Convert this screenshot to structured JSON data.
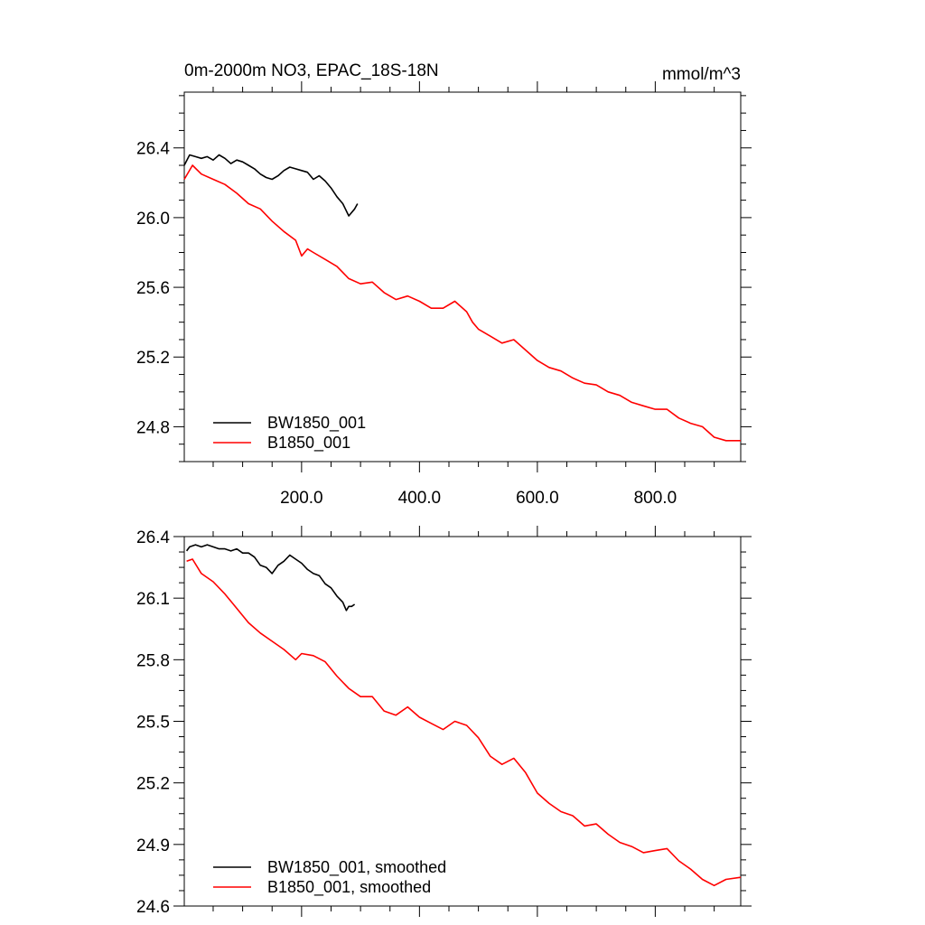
{
  "figure": {
    "title": "0m-2000m NO3, EPAC_18S-18N",
    "units": "mmol/m^3"
  },
  "colors": {
    "BW1850_001": "#000000",
    "B1850_001": "#ff0000"
  },
  "chart_data": [
    {
      "type": "line",
      "title": "0m-2000m NO3, EPAC_18S-18N",
      "units_label": "mmol/m^3",
      "xlabel": "",
      "ylabel": "",
      "xlim": [
        1,
        945
      ],
      "ylim": [
        24.6,
        26.72
      ],
      "xticks": [
        200,
        400,
        600,
        800
      ],
      "xtick_labels": [
        "200.0",
        "400.0",
        "600.0",
        "800.0"
      ],
      "yticks": [
        24.8,
        25.2,
        25.6,
        26.0,
        26.4
      ],
      "ytick_labels": [
        "24.8",
        "25.2",
        "25.6",
        "26.0",
        "26.4"
      ],
      "legend_position": "bottom-left",
      "series": [
        {
          "name": "BW1850_001",
          "color": "#000000",
          "x": [
            1,
            10,
            20,
            30,
            40,
            50,
            60,
            70,
            80,
            90,
            100,
            110,
            120,
            130,
            140,
            150,
            160,
            170,
            180,
            190,
            200,
            210,
            220,
            230,
            240,
            250,
            260,
            270,
            280,
            290,
            295
          ],
          "y": [
            26.3,
            26.36,
            26.35,
            26.34,
            26.35,
            26.33,
            26.36,
            26.34,
            26.31,
            26.33,
            26.32,
            26.3,
            26.28,
            26.25,
            26.23,
            26.22,
            26.24,
            26.27,
            26.29,
            26.28,
            26.27,
            26.26,
            26.22,
            26.24,
            26.21,
            26.17,
            26.12,
            26.08,
            26.01,
            26.05,
            26.08
          ]
        },
        {
          "name": "B1850_001",
          "color": "#ff0000",
          "x": [
            1,
            15,
            30,
            50,
            70,
            90,
            110,
            130,
            150,
            170,
            190,
            200,
            210,
            220,
            240,
            260,
            280,
            300,
            320,
            340,
            360,
            380,
            400,
            420,
            440,
            460,
            480,
            490,
            500,
            520,
            540,
            560,
            580,
            600,
            620,
            640,
            660,
            680,
            700,
            720,
            740,
            760,
            780,
            800,
            820,
            840,
            860,
            880,
            900,
            920,
            945
          ],
          "y": [
            26.22,
            26.3,
            26.25,
            26.22,
            26.19,
            26.14,
            26.08,
            26.05,
            25.98,
            25.92,
            25.87,
            25.78,
            25.82,
            25.8,
            25.76,
            25.72,
            25.65,
            25.62,
            25.63,
            25.57,
            25.53,
            25.55,
            25.52,
            25.48,
            25.48,
            25.52,
            25.46,
            25.4,
            25.36,
            25.32,
            25.28,
            25.3,
            25.24,
            25.18,
            25.14,
            25.12,
            25.08,
            25.05,
            25.04,
            25.0,
            24.98,
            24.94,
            24.92,
            24.9,
            24.9,
            24.85,
            24.82,
            24.8,
            24.74,
            24.72,
            24.72
          ]
        }
      ]
    },
    {
      "type": "line",
      "title": "",
      "xlabel": "",
      "ylabel": "",
      "xlim": [
        1,
        945
      ],
      "ylim": [
        24.6,
        26.4
      ],
      "xticks": [
        200,
        400,
        600,
        800
      ],
      "yticks": [
        24.6,
        24.9,
        25.2,
        25.5,
        25.8,
        26.1,
        26.4
      ],
      "ytick_labels": [
        "24.6",
        "24.9",
        "25.2",
        "25.5",
        "25.8",
        "26.1",
        "26.4"
      ],
      "legend_position": "bottom-left",
      "series": [
        {
          "name": "BW1850_001, smoothed",
          "color": "#000000",
          "x": [
            5,
            10,
            20,
            30,
            40,
            50,
            60,
            70,
            80,
            90,
            100,
            110,
            120,
            130,
            140,
            150,
            160,
            170,
            180,
            190,
            200,
            210,
            220,
            230,
            240,
            250,
            260,
            270,
            276,
            280,
            285,
            290
          ],
          "y": [
            26.33,
            26.35,
            26.36,
            26.35,
            26.36,
            26.35,
            26.34,
            26.34,
            26.33,
            26.34,
            26.32,
            26.32,
            26.3,
            26.26,
            26.25,
            26.22,
            26.26,
            26.28,
            26.31,
            26.29,
            26.27,
            26.24,
            26.22,
            26.21,
            26.17,
            26.15,
            26.11,
            26.08,
            26.04,
            26.06,
            26.06,
            26.07
          ]
        },
        {
          "name": "B1850_001, smoothed",
          "color": "#ff0000",
          "x": [
            5,
            15,
            30,
            50,
            70,
            90,
            110,
            130,
            150,
            170,
            190,
            200,
            220,
            240,
            260,
            280,
            300,
            320,
            340,
            360,
            380,
            400,
            420,
            440,
            460,
            480,
            500,
            520,
            540,
            560,
            580,
            600,
            620,
            640,
            660,
            680,
            700,
            720,
            740,
            760,
            780,
            800,
            820,
            840,
            860,
            880,
            900,
            920,
            945
          ],
          "y": [
            26.28,
            26.29,
            26.22,
            26.18,
            26.12,
            26.05,
            25.98,
            25.93,
            25.89,
            25.85,
            25.8,
            25.83,
            25.82,
            25.79,
            25.72,
            25.66,
            25.62,
            25.62,
            25.55,
            25.53,
            25.57,
            25.52,
            25.49,
            25.46,
            25.5,
            25.48,
            25.42,
            25.33,
            25.29,
            25.32,
            25.25,
            25.15,
            25.1,
            25.06,
            25.04,
            24.99,
            25.0,
            24.95,
            24.91,
            24.89,
            24.86,
            24.87,
            24.88,
            24.82,
            24.78,
            24.73,
            24.7,
            24.73,
            24.74
          ]
        }
      ]
    }
  ]
}
